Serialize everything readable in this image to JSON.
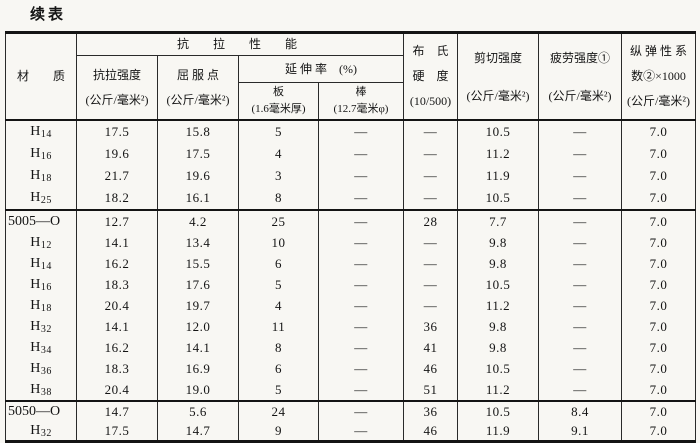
{
  "title": "续表",
  "table": {
    "header": {
      "material": "材　　质",
      "tensile_group": "抗　拉　性　能",
      "tensile_strength": "抗拉强度\n(公斤/毫米²)",
      "yield_point": "屈 服 点\n(公斤/毫米²)",
      "elongation": "延 伸 率　(%)",
      "plate": "板\n(1.6毫米厚)",
      "bar": "棒\n(12.7毫米φ)",
      "brinell": "布　氏\n硬　度\n(10/500)",
      "shear": "剪切强度\n(公斤/毫米²)",
      "fatigue": "疲劳强度①\n(公斤/毫米²)",
      "modulus": "纵 弹 性 系\n数②×1000\n(公斤/毫米²)"
    },
    "column_keys": [
      "材质",
      "抗拉强度(公斤/毫米²)",
      "屈服点(公斤/毫米²)",
      "延伸率板(1.6毫米厚)",
      "延伸率棒(12.7毫米φ)",
      "布氏硬度(10/500)",
      "剪切强度(公斤/毫米²)",
      "疲劳强度①(公斤/毫米²)",
      "纵弹性系数②×1000(公斤/毫米²)"
    ],
    "groups": [
      {
        "rows": [
          {
            "material": "H14",
            "values": [
              "17.5",
              "15.8",
              "5",
              "—",
              "—",
              "10.5",
              "—",
              "7.0"
            ]
          },
          {
            "material": "H16",
            "values": [
              "19.6",
              "17.5",
              "4",
              "—",
              "—",
              "11.2",
              "—",
              "7.0"
            ]
          },
          {
            "material": "H18",
            "values": [
              "21.7",
              "19.6",
              "3",
              "—",
              "—",
              "11.9",
              "—",
              "7.0"
            ]
          },
          {
            "material": "H25",
            "values": [
              "18.2",
              "16.1",
              "8",
              "—",
              "—",
              "10.5",
              "—",
              "7.0"
            ]
          }
        ]
      },
      {
        "rows": [
          {
            "material": "5005—O",
            "values": [
              "12.7",
              "4.2",
              "25",
              "—",
              "28",
              "7.7",
              "—",
              "7.0"
            ]
          },
          {
            "material": "H12",
            "values": [
              "14.1",
              "13.4",
              "10",
              "—",
              "—",
              "9.8",
              "—",
              "7.0"
            ]
          },
          {
            "material": "H14",
            "values": [
              "16.2",
              "15.5",
              "6",
              "—",
              "—",
              "9.8",
              "—",
              "7.0"
            ]
          },
          {
            "material": "H16",
            "values": [
              "18.3",
              "17.6",
              "5",
              "—",
              "—",
              "10.5",
              "—",
              "7.0"
            ]
          },
          {
            "material": "H18",
            "values": [
              "20.4",
              "19.7",
              "4",
              "—",
              "—",
              "11.2",
              "—",
              "7.0"
            ]
          },
          {
            "material": "H32",
            "values": [
              "14.1",
              "12.0",
              "11",
              "—",
              "36",
              "9.8",
              "—",
              "7.0"
            ]
          },
          {
            "material": "H34",
            "values": [
              "16.2",
              "14.1",
              "8",
              "—",
              "41",
              "9.8",
              "—",
              "7.0"
            ]
          },
          {
            "material": "H36",
            "values": [
              "18.3",
              "16.9",
              "6",
              "—",
              "46",
              "10.5",
              "—",
              "7.0"
            ]
          },
          {
            "material": "H38",
            "values": [
              "20.4",
              "19.0",
              "5",
              "—",
              "51",
              "11.2",
              "—",
              "7.0"
            ]
          }
        ]
      },
      {
        "rows": [
          {
            "material": "5050—O",
            "values": [
              "14.7",
              "5.6",
              "24",
              "—",
              "36",
              "10.5",
              "8.4",
              "7.0"
            ]
          },
          {
            "material": "H32",
            "values": [
              "17.5",
              "14.7",
              "9",
              "—",
              "46",
              "11.9",
              "9.1",
              "7.0"
            ]
          }
        ]
      }
    ]
  }
}
